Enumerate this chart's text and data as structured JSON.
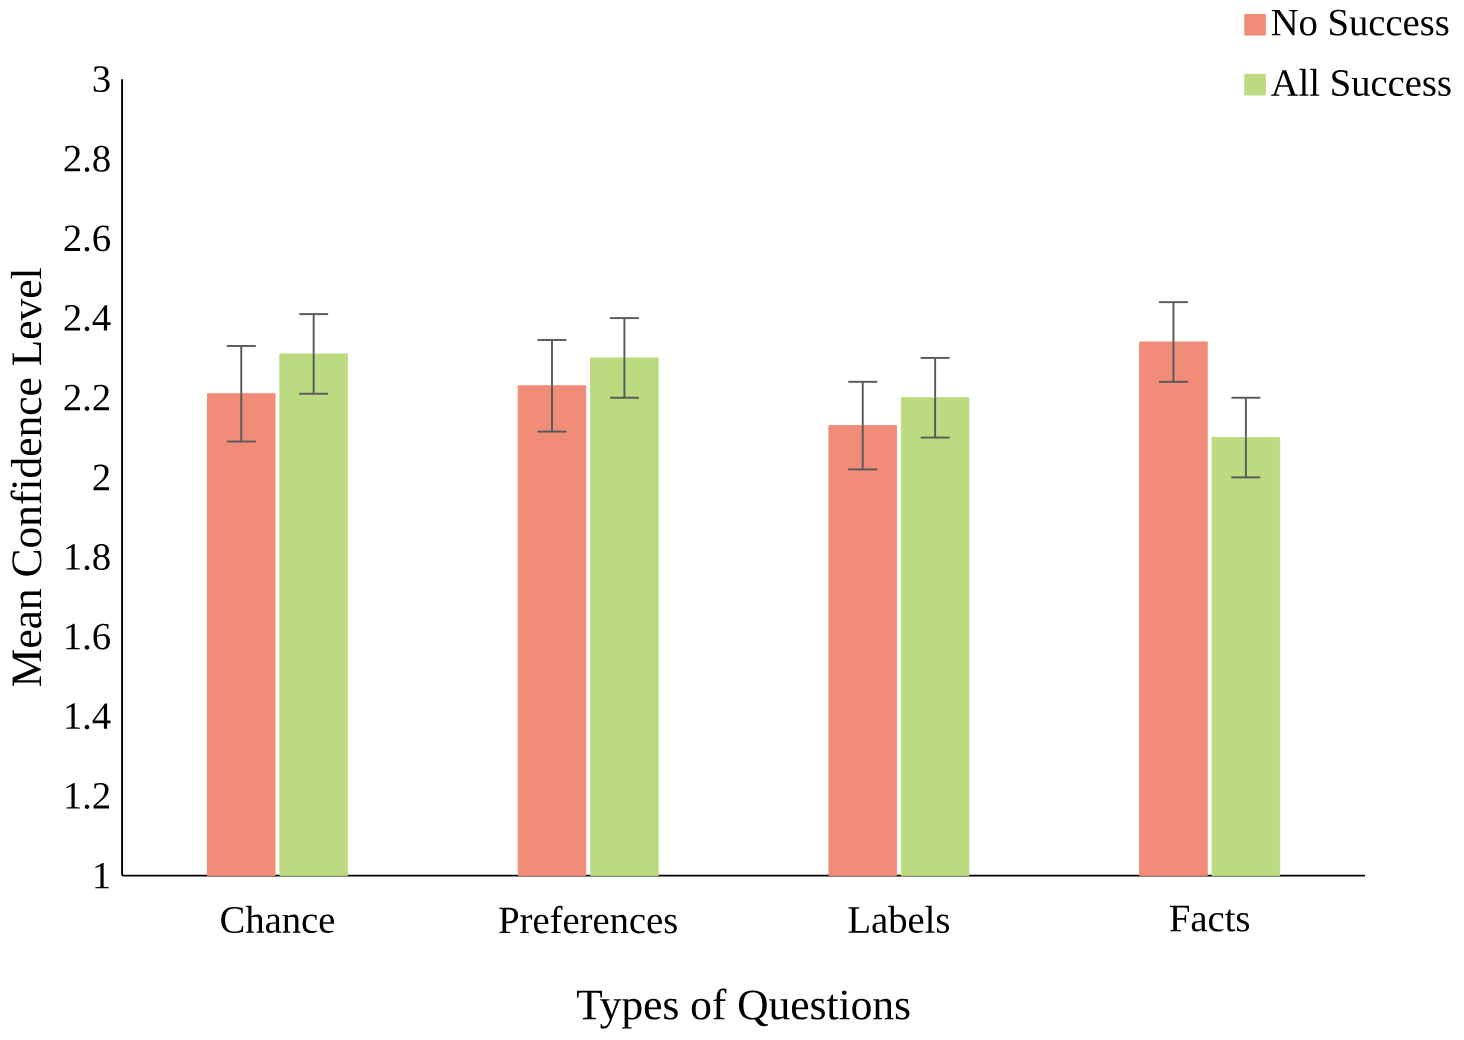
{
  "chart_data": {
    "type": "bar",
    "xlabel": "Types of Questions",
    "ylabel": "Mean Confidence Level",
    "categories": [
      "Chance",
      "Preferences",
      "Labels",
      "Facts"
    ],
    "series": [
      {
        "name": "No Success",
        "color": "#f08c78",
        "values": [
          2.21,
          2.23,
          2.13,
          2.34
        ],
        "errors": [
          0.12,
          0.115,
          0.11,
          0.1
        ]
      },
      {
        "name": "All Success",
        "color": "#bcdb80",
        "values": [
          2.31,
          2.3,
          2.2,
          2.1
        ],
        "errors": [
          0.1,
          0.1,
          0.1,
          0.1
        ]
      }
    ],
    "ylim": [
      1,
      3
    ],
    "yticks": [
      1,
      1.2,
      1.4,
      1.6,
      1.8,
      2,
      2.2,
      2.4,
      2.6,
      2.8,
      3
    ],
    "grid": false,
    "legend": "top right"
  }
}
